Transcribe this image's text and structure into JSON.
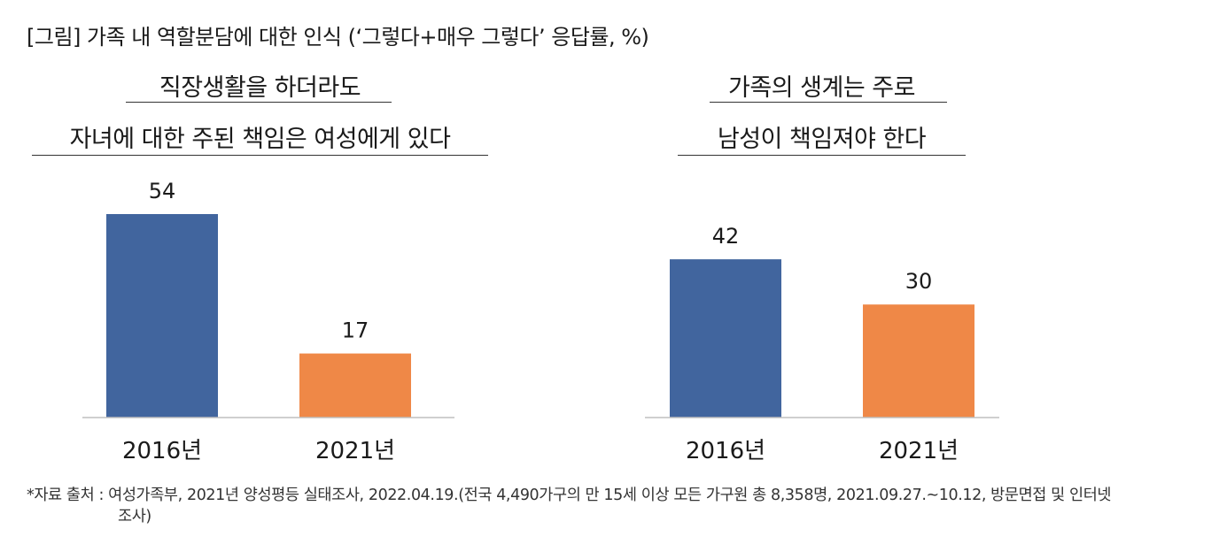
{
  "figure_title": "[그림] 가족 내 역할분담에 대한 인식 (‘그렇다+매우 그렇다’ 응답률, %)",
  "colors": {
    "bar_2016": "#41659E",
    "bar_2021": "#EF8847",
    "axis": "#BFBFBF"
  },
  "chart_data": [
    {
      "type": "bar",
      "title_lines": [
        "직장생활을 하더라도",
        "자녀에 대한 주된 책임은 여성에게 있다"
      ],
      "categories": [
        "2016년",
        "2021년"
      ],
      "values": [
        54,
        17
      ],
      "data_labels": [
        "54",
        "17"
      ],
      "xlabel": "",
      "ylabel": "",
      "ylim": [
        0,
        54
      ],
      "grid": false
    },
    {
      "type": "bar",
      "title_lines": [
        "가족의 생계는 주로",
        "남성이 책임져야 한다"
      ],
      "categories": [
        "2016년",
        "2021년"
      ],
      "values": [
        42,
        30
      ],
      "data_labels": [
        "42",
        "30"
      ],
      "xlabel": "",
      "ylabel": "",
      "ylim": [
        0,
        54
      ],
      "grid": false
    }
  ],
  "footnote": {
    "line1": "*자료 출처 : 여성가족부, 2021년 양성평등 실태조사, 2022.04.19.(전국 4,490가구의 만 15세 이상 모든 가구원 총 8,358명, 2021.09.27.~10.12, 방문면접 및 인터넷",
    "line2": "조사)"
  }
}
